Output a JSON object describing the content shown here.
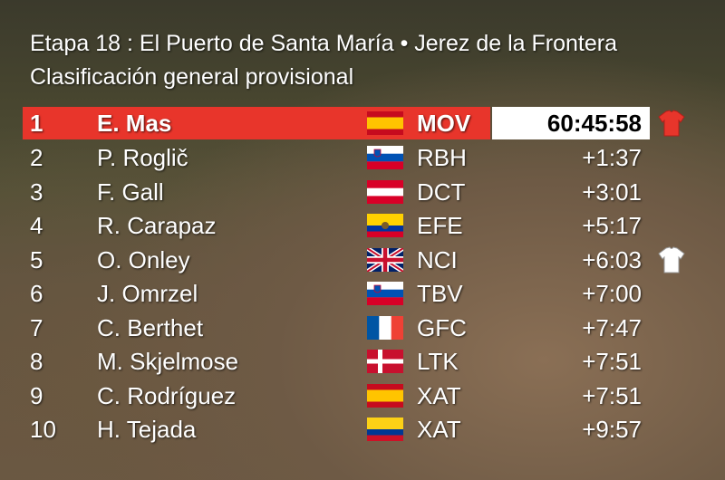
{
  "header": {
    "title": "Etapa 18 : El Puerto de Santa María • Jerez de la Frontera",
    "subtitle": "Clasificación general provisional"
  },
  "table": {
    "rows": [
      {
        "position": "1",
        "name": "E. Mas",
        "team": "MOV",
        "time": "60:45:58"
      },
      {
        "position": "2",
        "name": "P. Roglič",
        "team": "RBH",
        "time": "+1:37"
      },
      {
        "position": "3",
        "name": "F. Gall",
        "team": "DCT",
        "time": "+3:01"
      },
      {
        "position": "4",
        "name": "R. Carapaz",
        "team": "EFE",
        "time": "+5:17"
      },
      {
        "position": "5",
        "name": "O. Onley",
        "team": "NCI",
        "time": "+6:03"
      },
      {
        "position": "6",
        "name": "J. Omrzel",
        "team": "TBV",
        "time": "+7:00"
      },
      {
        "position": "7",
        "name": "C. Berthet",
        "team": "GFC",
        "time": "+7:47"
      },
      {
        "position": "8",
        "name": "M. Skjelmose",
        "team": "LTK",
        "time": "+7:51"
      },
      {
        "position": "9",
        "name": "C. Rodríguez",
        "team": "XAT",
        "time": "+7:51"
      },
      {
        "position": "10",
        "name": "H. Tejada",
        "team": "XAT",
        "time": "+9:57"
      }
    ]
  }
}
